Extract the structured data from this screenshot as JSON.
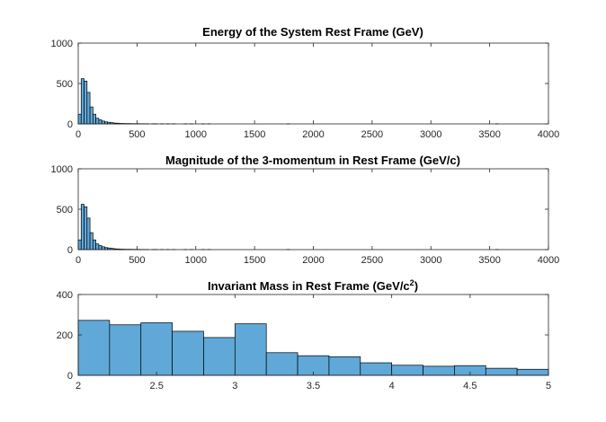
{
  "chart_data": [
    {
      "type": "bar",
      "title": "Energy of the System Rest Frame (GeV)",
      "xlim": [
        0,
        4000
      ],
      "ylim": [
        0,
        1000
      ],
      "xticks": [
        "0",
        "500",
        "1000",
        "1500",
        "2000",
        "2500",
        "3000",
        "3500",
        "4000"
      ],
      "yticks": [
        "0",
        "500",
        "1000"
      ],
      "bin_width": 25,
      "bins": [
        {
          "x0": 0,
          "y": 120
        },
        {
          "x0": 25,
          "y": 560
        },
        {
          "x0": 50,
          "y": 530
        },
        {
          "x0": 75,
          "y": 390
        },
        {
          "x0": 100,
          "y": 210
        },
        {
          "x0": 125,
          "y": 120
        },
        {
          "x0": 150,
          "y": 70
        },
        {
          "x0": 175,
          "y": 50
        },
        {
          "x0": 200,
          "y": 35
        },
        {
          "x0": 225,
          "y": 25
        },
        {
          "x0": 250,
          "y": 20
        },
        {
          "x0": 275,
          "y": 15
        },
        {
          "x0": 300,
          "y": 10
        },
        {
          "x0": 325,
          "y": 8
        },
        {
          "x0": 350,
          "y": 6
        },
        {
          "x0": 375,
          "y": 5
        },
        {
          "x0": 400,
          "y": 4
        },
        {
          "x0": 425,
          "y": 4
        },
        {
          "x0": 450,
          "y": 3
        },
        {
          "x0": 475,
          "y": 3
        },
        {
          "x0": 500,
          "y": 3
        },
        {
          "x0": 525,
          "y": 2
        },
        {
          "x0": 550,
          "y": 2
        },
        {
          "x0": 575,
          "y": 2
        },
        {
          "x0": 625,
          "y": 2
        },
        {
          "x0": 650,
          "y": 2
        },
        {
          "x0": 700,
          "y": 2
        },
        {
          "x0": 750,
          "y": 2
        },
        {
          "x0": 800,
          "y": 2
        },
        {
          "x0": 900,
          "y": 2
        },
        {
          "x0": 950,
          "y": 2
        },
        {
          "x0": 1050,
          "y": 2
        },
        {
          "x0": 1100,
          "y": 2
        },
        {
          "x0": 1775,
          "y": 2
        },
        {
          "x0": 3550,
          "y": 2
        }
      ]
    },
    {
      "type": "bar",
      "title": "Magnitude of the 3-momentum in Rest Frame (GeV/c)",
      "xlim": [
        0,
        4000
      ],
      "ylim": [
        0,
        1000
      ],
      "xticks": [
        "0",
        "500",
        "1000",
        "1500",
        "2000",
        "2500",
        "3000",
        "3500",
        "4000"
      ],
      "yticks": [
        "0",
        "500",
        "1000"
      ],
      "bin_width": 25,
      "bins": [
        {
          "x0": 0,
          "y": 120
        },
        {
          "x0": 25,
          "y": 560
        },
        {
          "x0": 50,
          "y": 530
        },
        {
          "x0": 75,
          "y": 390
        },
        {
          "x0": 100,
          "y": 210
        },
        {
          "x0": 125,
          "y": 120
        },
        {
          "x0": 150,
          "y": 70
        },
        {
          "x0": 175,
          "y": 50
        },
        {
          "x0": 200,
          "y": 35
        },
        {
          "x0": 225,
          "y": 25
        },
        {
          "x0": 250,
          "y": 20
        },
        {
          "x0": 275,
          "y": 15
        },
        {
          "x0": 300,
          "y": 10
        },
        {
          "x0": 325,
          "y": 8
        },
        {
          "x0": 350,
          "y": 6
        },
        {
          "x0": 375,
          "y": 5
        },
        {
          "x0": 400,
          "y": 4
        },
        {
          "x0": 425,
          "y": 4
        },
        {
          "x0": 450,
          "y": 3
        },
        {
          "x0": 475,
          "y": 3
        },
        {
          "x0": 500,
          "y": 3
        },
        {
          "x0": 525,
          "y": 2
        },
        {
          "x0": 550,
          "y": 2
        },
        {
          "x0": 575,
          "y": 2
        },
        {
          "x0": 625,
          "y": 2
        },
        {
          "x0": 650,
          "y": 2
        },
        {
          "x0": 700,
          "y": 2
        },
        {
          "x0": 750,
          "y": 2
        },
        {
          "x0": 800,
          "y": 2
        },
        {
          "x0": 900,
          "y": 2
        },
        {
          "x0": 950,
          "y": 2
        },
        {
          "x0": 1050,
          "y": 2
        },
        {
          "x0": 1100,
          "y": 2
        },
        {
          "x0": 1775,
          "y": 2
        },
        {
          "x0": 3550,
          "y": 2
        }
      ]
    },
    {
      "type": "bar",
      "title": "Invariant Mass in Rest Frame (GeV/c",
      "title_superscript": "2",
      "title_suffix": ")",
      "xlim": [
        2,
        5
      ],
      "ylim": [
        0,
        400
      ],
      "xticks": [
        "2",
        "2.5",
        "3",
        "3.5",
        "4",
        "4.5",
        "5"
      ],
      "yticks": [
        "0",
        "200",
        "400"
      ],
      "bin_width": 0.2,
      "bins": [
        {
          "x0": 2.0,
          "y": 272
        },
        {
          "x0": 2.2,
          "y": 250
        },
        {
          "x0": 2.4,
          "y": 260
        },
        {
          "x0": 2.6,
          "y": 218
        },
        {
          "x0": 2.8,
          "y": 187
        },
        {
          "x0": 3.0,
          "y": 255
        },
        {
          "x0": 3.2,
          "y": 112
        },
        {
          "x0": 3.4,
          "y": 97
        },
        {
          "x0": 3.6,
          "y": 92
        },
        {
          "x0": 3.8,
          "y": 62
        },
        {
          "x0": 4.0,
          "y": 50
        },
        {
          "x0": 4.2,
          "y": 45
        },
        {
          "x0": 4.4,
          "y": 48
        },
        {
          "x0": 4.6,
          "y": 35
        },
        {
          "x0": 4.8,
          "y": 30
        }
      ]
    }
  ],
  "colors": {
    "bar_fill": "#60a8d8",
    "bar_edge": "#000000",
    "axis": "#262626"
  }
}
